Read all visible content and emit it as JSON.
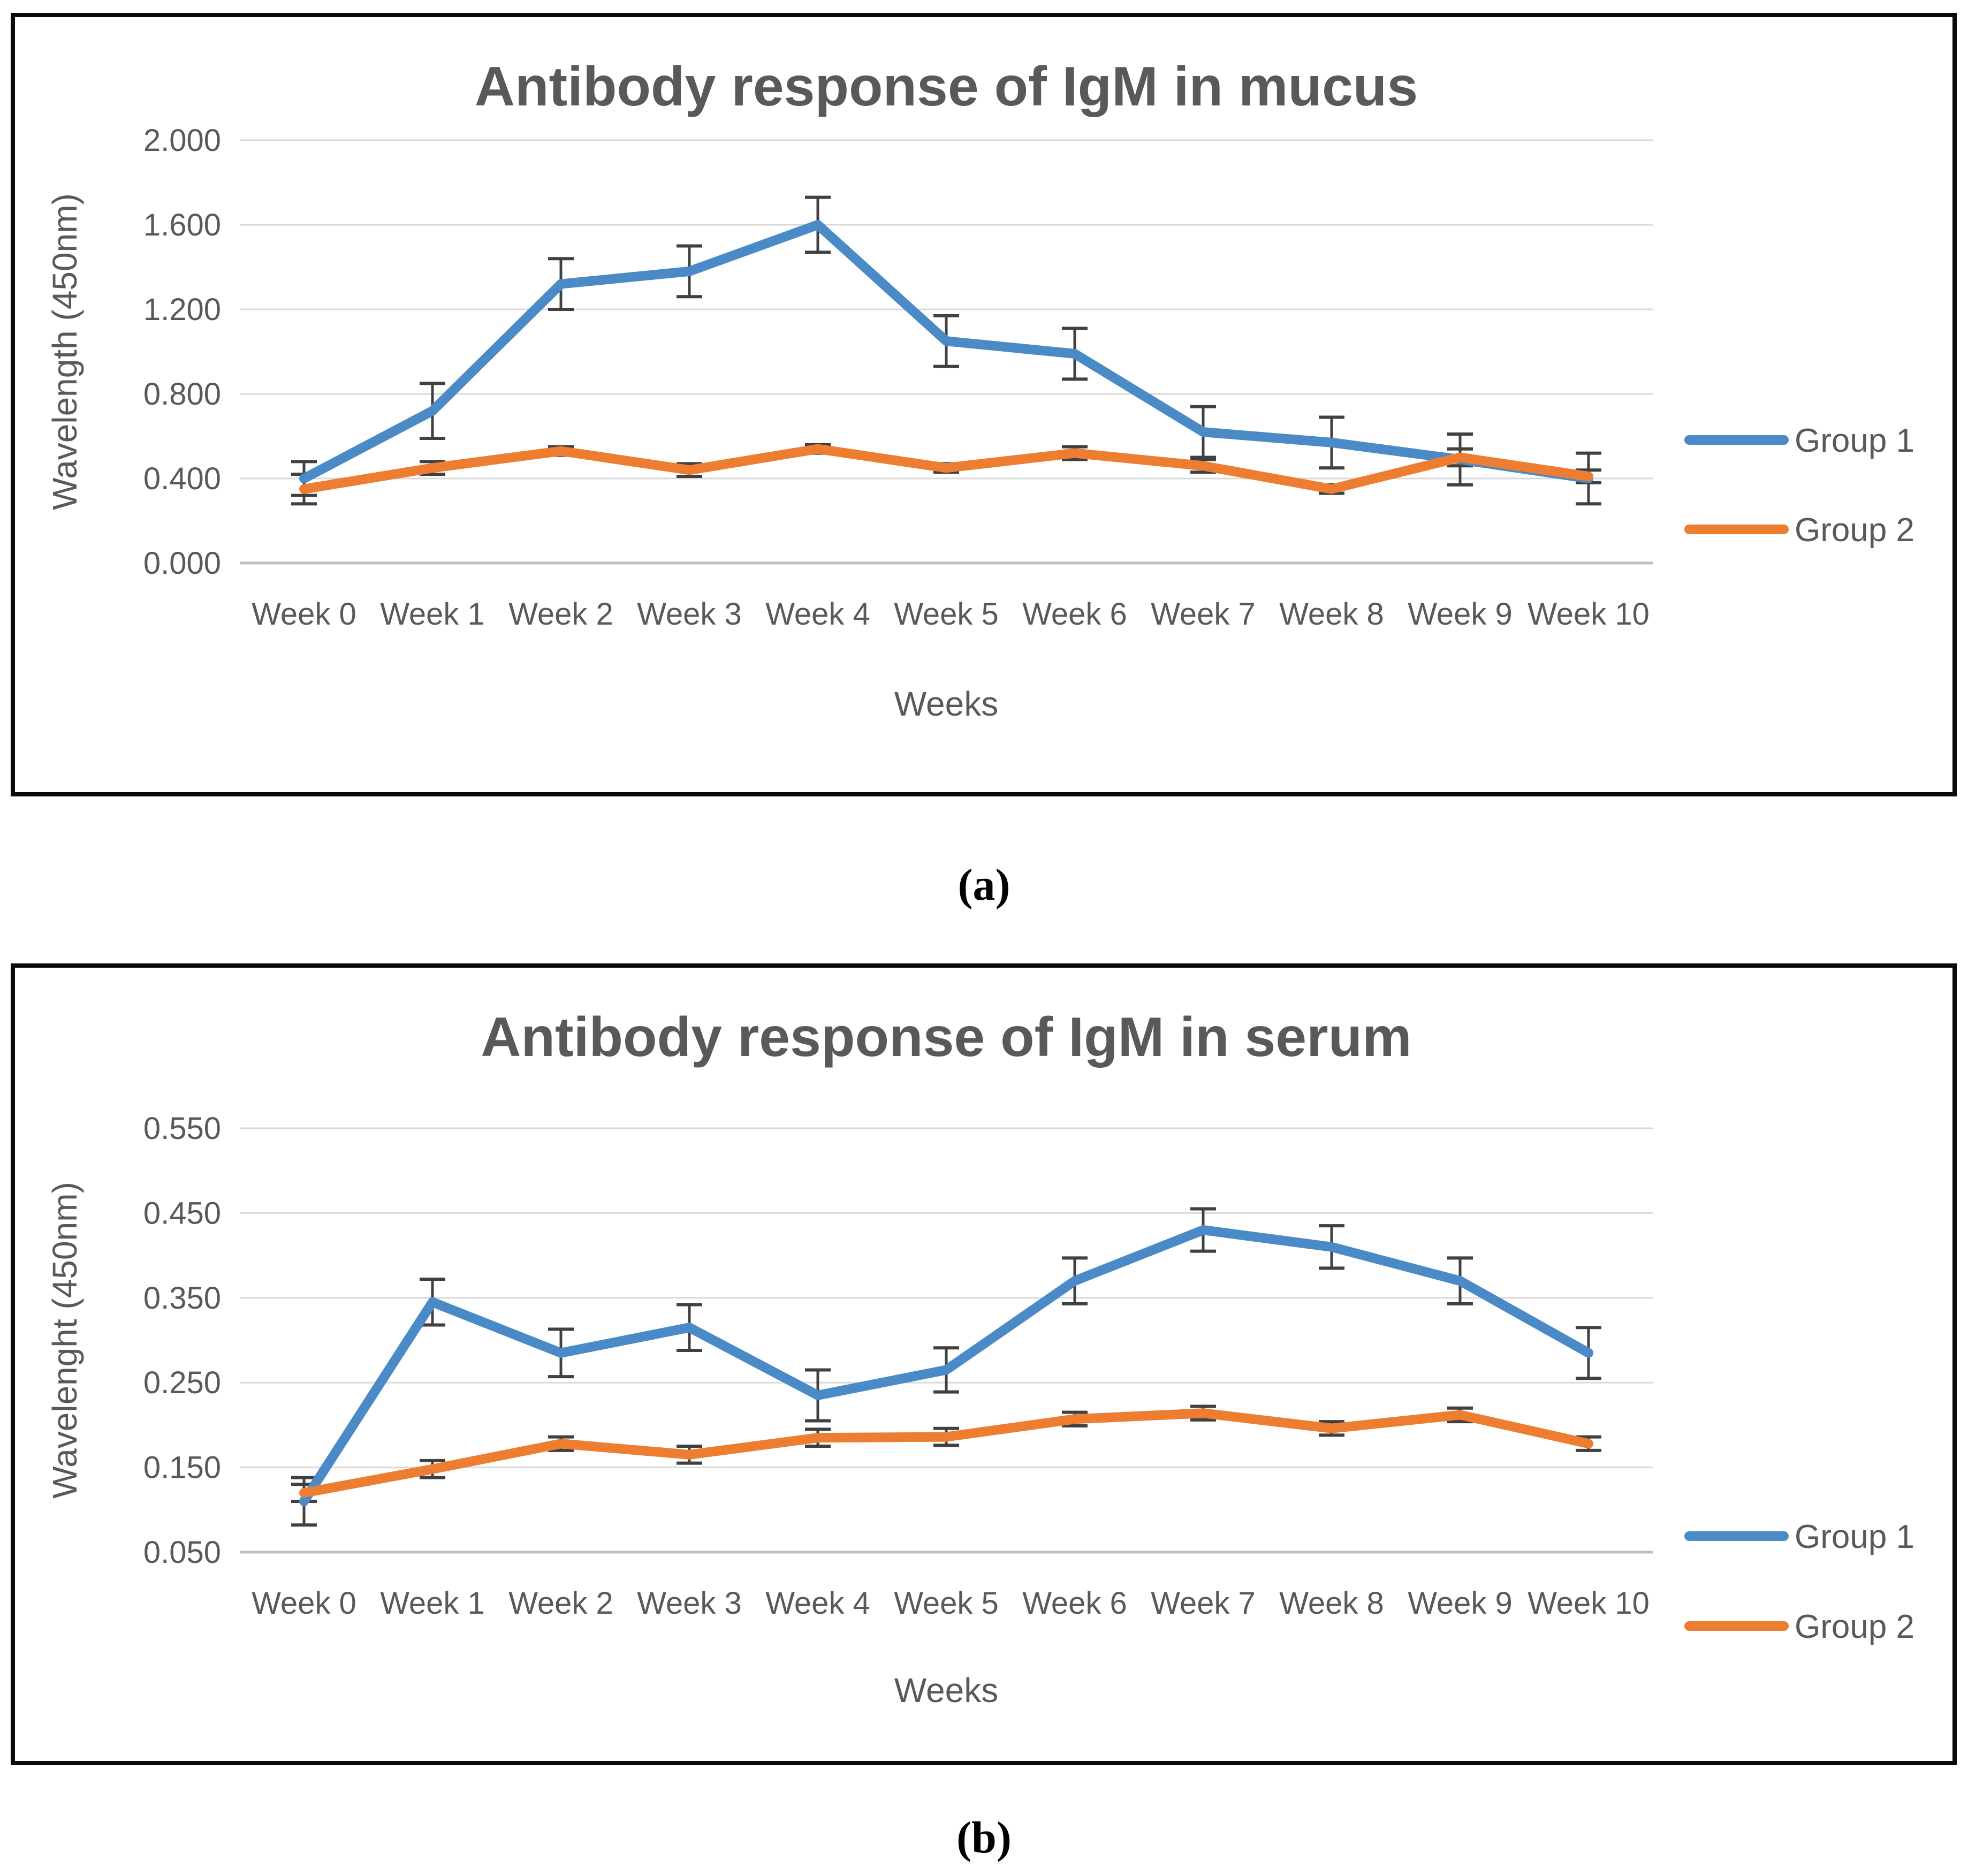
{
  "figure": {
    "captions": {
      "a": "(a)",
      "b": "(b)"
    }
  },
  "colors": {
    "group1": "#4A8AC6",
    "group2": "#ED7D31",
    "title_text": "#595959",
    "axis_text": "#595959",
    "gridline": "#D9D9D9",
    "axis_line": "#BFBFBF",
    "error_bar": "#404040",
    "box_border": "#0a0a0a"
  },
  "chart_data": [
    {
      "id": "igm-mucus",
      "type": "line",
      "title": "Antibody response of IgM in mucus",
      "xlabel": "Weeks",
      "ylabel": "Wavelength (450nm)",
      "categories": [
        "Week 0",
        "Week 1",
        "Week 2",
        "Week 3",
        "Week 4",
        "Week 5",
        "Week 6",
        "Week 7",
        "Week 8",
        "Week 9",
        "Week 10"
      ],
      "yticks": [
        "2.000",
        "1.600",
        "1.200",
        "0.800",
        "0.400",
        "0.000"
      ],
      "ylim": [
        0.0,
        2.0
      ],
      "grid": true,
      "legend_position": "right",
      "legend": [
        "Group 1",
        "Group 2"
      ],
      "series": [
        {
          "name": "Group 1",
          "color_key": "group1",
          "values": [
            0.4,
            0.72,
            1.32,
            1.38,
            1.6,
            1.05,
            0.99,
            0.62,
            0.57,
            0.49,
            0.4
          ],
          "errors": [
            0.08,
            0.13,
            0.12,
            0.12,
            0.13,
            0.12,
            0.12,
            0.12,
            0.12,
            0.12,
            0.12
          ]
        },
        {
          "name": "Group 2",
          "color_key": "group2",
          "values": [
            0.35,
            0.45,
            0.53,
            0.44,
            0.54,
            0.45,
            0.52,
            0.46,
            0.35,
            0.5,
            0.41
          ],
          "errors": [
            0.07,
            0.03,
            0.02,
            0.03,
            0.02,
            0.02,
            0.03,
            0.03,
            0.02,
            0.04,
            0.03
          ]
        }
      ]
    },
    {
      "id": "igm-serum",
      "type": "line",
      "title": "Antibody response of IgM in serum",
      "xlabel": "Weeks",
      "ylabel": "Wavelenght (450nm)",
      "categories": [
        "Week 0",
        "Week 1",
        "Week 2",
        "Week 3",
        "Week 4",
        "Week 5",
        "Week 6",
        "Week 7",
        "Week 8",
        "Week 9",
        "Week 10"
      ],
      "yticks": [
        "0.550",
        "0.450",
        "0.350",
        "0.250",
        "0.150",
        "0.050"
      ],
      "ylim": [
        0.05,
        0.55
      ],
      "grid": true,
      "legend_position": "right",
      "legend": [
        "Group 1",
        "Group 2"
      ],
      "series": [
        {
          "name": "Group 1",
          "color_key": "group1",
          "values": [
            0.11,
            0.345,
            0.285,
            0.315,
            0.235,
            0.265,
            0.37,
            0.43,
            0.41,
            0.37,
            0.285
          ],
          "errors": [
            0.028,
            0.027,
            0.028,
            0.027,
            0.03,
            0.026,
            0.027,
            0.025,
            0.025,
            0.027,
            0.03
          ]
        },
        {
          "name": "Group 2",
          "color_key": "group2",
          "values": [
            0.12,
            0.148,
            0.178,
            0.165,
            0.185,
            0.186,
            0.207,
            0.214,
            0.196,
            0.212,
            0.178
          ],
          "errors": [
            0.01,
            0.01,
            0.008,
            0.01,
            0.01,
            0.01,
            0.008,
            0.008,
            0.008,
            0.008,
            0.008
          ]
        }
      ]
    }
  ]
}
